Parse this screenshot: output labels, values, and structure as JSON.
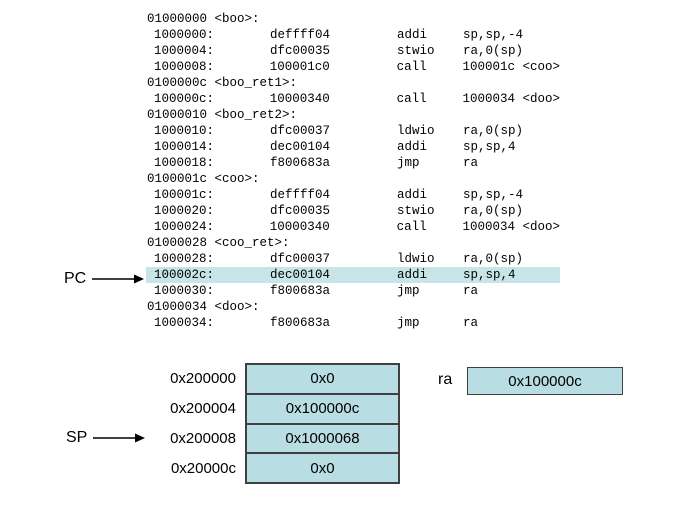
{
  "colors": {
    "highlight": "#c7e5e9",
    "cell_fill": "#b8dde2",
    "border": "#404040",
    "arrow": "#000000"
  },
  "code_listing": {
    "lines": [
      {
        "t": "label",
        "text": "01000000 <boo>:"
      },
      {
        "t": "instr",
        "addr": "1000000:",
        "code": "deffff04",
        "mn": "addi",
        "args": "sp,sp,-4"
      },
      {
        "t": "instr",
        "addr": "1000004:",
        "code": "dfc00035",
        "mn": "stwio",
        "args": "ra,0(sp)"
      },
      {
        "t": "instr",
        "addr": "1000008:",
        "code": "100001c0",
        "mn": "call",
        "args": "100001c <coo>"
      },
      {
        "t": "label",
        "text": "0100000c <boo_ret1>:"
      },
      {
        "t": "instr",
        "addr": "100000c:",
        "code": "10000340",
        "mn": "call",
        "args": "1000034 <doo>"
      },
      {
        "t": "label",
        "text": "01000010 <boo_ret2>:"
      },
      {
        "t": "instr",
        "addr": "1000010:",
        "code": "dfc00037",
        "mn": "ldwio",
        "args": "ra,0(sp)"
      },
      {
        "t": "instr",
        "addr": "1000014:",
        "code": "dec00104",
        "mn": "addi",
        "args": "sp,sp,4"
      },
      {
        "t": "instr",
        "addr": "1000018:",
        "code": "f800683a",
        "mn": "jmp",
        "args": "ra"
      },
      {
        "t": "label",
        "text": "0100001c <coo>:"
      },
      {
        "t": "instr",
        "addr": "100001c:",
        "code": "deffff04",
        "mn": "addi",
        "args": "sp,sp,-4"
      },
      {
        "t": "instr",
        "addr": "1000020:",
        "code": "dfc00035",
        "mn": "stwio",
        "args": "ra,0(sp)"
      },
      {
        "t": "instr",
        "addr": "1000024:",
        "code": "10000340",
        "mn": "call",
        "args": "1000034 <doo>"
      },
      {
        "t": "label",
        "text": "01000028 <coo_ret>:"
      },
      {
        "t": "instr",
        "addr": "1000028:",
        "code": "dfc00037",
        "mn": "ldwio",
        "args": "ra,0(sp)"
      },
      {
        "t": "instr",
        "addr": "100002c:",
        "code": "dec00104",
        "mn": "addi",
        "args": "sp,sp,4",
        "highlight": true
      },
      {
        "t": "instr",
        "addr": "1000030:",
        "code": "f800683a",
        "mn": "jmp",
        "args": "ra"
      },
      {
        "t": "label",
        "text": "01000034 <doo>:"
      },
      {
        "t": "instr",
        "addr": "1000034:",
        "code": "f800683a",
        "mn": "jmp",
        "args": "ra"
      }
    ],
    "highlighted_address": "100002c:"
  },
  "pointers": {
    "pc": {
      "label": "PC"
    },
    "sp": {
      "label": "SP",
      "points_to": "0x200008"
    }
  },
  "stack": {
    "rows": [
      {
        "address": "0x200000",
        "value": "0x0"
      },
      {
        "address": "0x200004",
        "value": "0x100000c"
      },
      {
        "address": "0x200008",
        "value": "0x1000068"
      },
      {
        "address": "0x20000c",
        "value": "0x0"
      }
    ]
  },
  "ra_register": {
    "label": "ra",
    "value": "0x100000c"
  }
}
